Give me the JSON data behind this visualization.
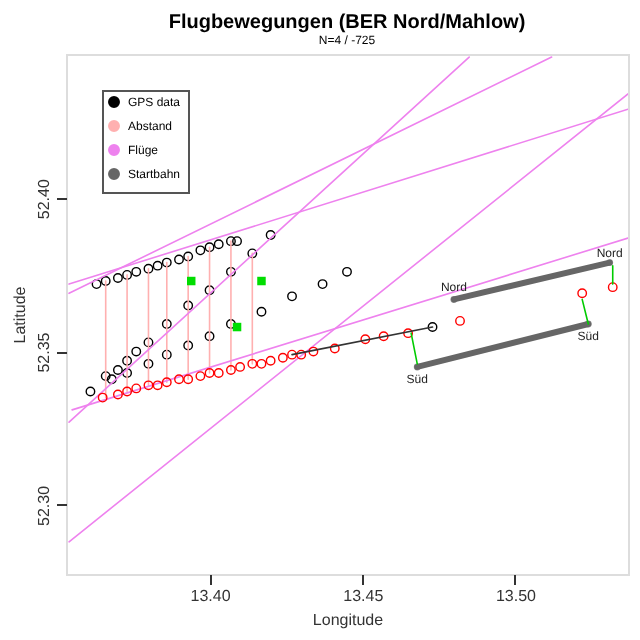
{
  "chart_data": {
    "type": "scatter",
    "title": "Flugbewegungen (BER Nord/Mahlow)",
    "subtitle": "N=4 / -725",
    "xlabel": "Longitude",
    "ylabel": "Latitude",
    "xlim": [
      13.353,
      13.537
    ],
    "ylim": [
      52.2775,
      52.447
    ],
    "xticks": [
      {
        "value": 13.4,
        "label": "13.40"
      },
      {
        "value": 13.45,
        "label": "13.45"
      },
      {
        "value": 13.5,
        "label": "13.50"
      }
    ],
    "yticks": [
      {
        "value": 52.3,
        "label": "52.30"
      },
      {
        "value": 52.35,
        "label": "52.35"
      },
      {
        "value": 52.4,
        "label": "52.40"
      }
    ],
    "grid": false,
    "legend": "top left",
    "series": [
      {
        "name": "GPS data",
        "marker": "circle",
        "color": "#000000",
        "x": [
          13.363,
          13.366,
          13.37,
          13.373,
          13.376,
          13.38,
          13.383,
          13.386,
          13.39,
          13.393,
          13.397,
          13.4,
          13.403,
          13.407,
          13.409,
          13.361,
          13.366,
          13.37,
          13.373,
          13.376,
          13.38,
          13.386,
          13.393,
          13.4,
          13.407,
          13.414,
          13.42,
          13.368,
          13.373,
          13.38,
          13.386,
          13.393,
          13.4,
          13.407,
          13.417,
          13.427,
          13.437,
          13.445,
          13.473
        ],
        "values": [
          52.372,
          52.373,
          52.374,
          52.375,
          52.376,
          52.377,
          52.378,
          52.379,
          52.38,
          52.381,
          52.383,
          52.384,
          52.385,
          52.386,
          52.386,
          52.337,
          52.342,
          52.344,
          52.347,
          52.35,
          52.353,
          52.359,
          52.365,
          52.37,
          52.376,
          52.382,
          52.388,
          52.341,
          52.343,
          52.346,
          52.349,
          52.352,
          52.355,
          52.359,
          52.363,
          52.368,
          52.372,
          52.376,
          52.358
        ]
      },
      {
        "name": "Abstand",
        "type": "line",
        "color": "#ffb0b0",
        "x": [
          13.366,
          13.366
        ],
        "values": [
          52.373,
          52.335
        ]
      },
      {
        "type": "line",
        "color": "#ffb0b0",
        "x": [
          13.373,
          13.373
        ],
        "values": [
          52.375,
          52.337
        ]
      },
      {
        "type": "line",
        "color": "#ffb0b0",
        "x": [
          13.38,
          13.38
        ],
        "values": [
          52.377,
          52.339
        ]
      },
      {
        "type": "line",
        "color": "#ffb0b0",
        "x": [
          13.386,
          13.386
        ],
        "values": [
          52.379,
          52.34
        ]
      },
      {
        "type": "line",
        "color": "#ffb0b0",
        "x": [
          13.393,
          13.393
        ],
        "values": [
          52.381,
          52.341
        ]
      },
      {
        "type": "line",
        "color": "#ffb0b0",
        "x": [
          13.4,
          13.4
        ],
        "values": [
          52.384,
          52.343
        ]
      },
      {
        "type": "line",
        "color": "#ffb0b0",
        "x": [
          13.407,
          13.407
        ],
        "values": [
          52.386,
          52.344
        ]
      },
      {
        "type": "line",
        "color": "#ffb0b0",
        "x": [
          13.414,
          13.414
        ],
        "values": [
          52.382,
          52.346
        ]
      },
      {
        "name": "Flüge",
        "type": "line",
        "color": "#ee82ee",
        "x": [
          13.354,
          13.485
        ],
        "values": [
          52.327,
          52.446
        ]
      },
      {
        "type": "line",
        "color": "#ee82ee",
        "x": [
          13.354,
          13.512
        ],
        "values": [
          52.369,
          52.446
        ]
      },
      {
        "type": "line",
        "color": "#ee82ee",
        "x": [
          13.354,
          13.537
        ],
        "values": [
          52.288,
          52.434
        ]
      },
      {
        "type": "line",
        "color": "#ee82ee",
        "x": [
          13.354,
          13.537
        ],
        "values": [
          52.372,
          52.429
        ]
      },
      {
        "type": "line",
        "color": "#ee82ee",
        "x": [
          13.355,
          13.537
        ],
        "values": [
          52.331,
          52.387
        ]
      },
      {
        "name": "Startbahn",
        "type": "line",
        "marker": "circle",
        "color": "#666666",
        "x": [
          13.48,
          13.531
        ],
        "values": [
          52.367,
          52.379
        ]
      },
      {
        "type": "line",
        "marker": "circle",
        "color": "#666666",
        "x": [
          13.468,
          13.524
        ],
        "values": [
          52.345,
          52.359
        ]
      },
      {
        "marker": "circle",
        "color": "#ff0000",
        "x": [
          13.365,
          13.37,
          13.373,
          13.376,
          13.38,
          13.383,
          13.386,
          13.39,
          13.393,
          13.397,
          13.4,
          13.403,
          13.407,
          13.41,
          13.414,
          13.417,
          13.42,
          13.424,
          13.427,
          13.43,
          13.434,
          13.441,
          13.451,
          13.457,
          13.465,
          13.482,
          13.522,
          13.532
        ],
        "values": [
          52.335,
          52.336,
          52.337,
          52.338,
          52.339,
          52.339,
          52.34,
          52.341,
          52.341,
          52.342,
          52.343,
          52.343,
          52.344,
          52.345,
          52.346,
          52.346,
          52.347,
          52.348,
          52.349,
          52.349,
          52.35,
          52.351,
          52.354,
          52.355,
          52.356,
          52.36,
          52.369,
          52.371
        ]
      },
      {
        "type": "line",
        "color": "#333333",
        "x": [
          13.427,
          13.473
        ],
        "values": [
          52.349,
          52.358
        ]
      },
      {
        "type": "line",
        "color": "#00cc00",
        "x": [
          13.466,
          13.468
        ],
        "values": [
          52.356,
          52.346
        ]
      },
      {
        "type": "line",
        "color": "#00cc00",
        "x": [
          13.522,
          13.524
        ],
        "values": [
          52.367,
          52.359
        ]
      },
      {
        "type": "line",
        "color": "#00cc00",
        "x": [
          13.532,
          13.532
        ],
        "values": [
          52.378,
          52.372
        ]
      },
      {
        "marker": "square",
        "color": "#00dd00",
        "x": [
          13.394,
          13.417,
          13.409
        ],
        "values": [
          52.373,
          52.373,
          52.358
        ]
      }
    ],
    "annotations": [
      {
        "text": "Nord",
        "x": 13.48,
        "y": 52.371
      },
      {
        "text": "Nord",
        "x": 13.531,
        "y": 52.382
      },
      {
        "text": "Süd",
        "x": 13.468,
        "y": 52.341
      },
      {
        "text": "Süd",
        "x": 13.524,
        "y": 52.355
      }
    ]
  }
}
